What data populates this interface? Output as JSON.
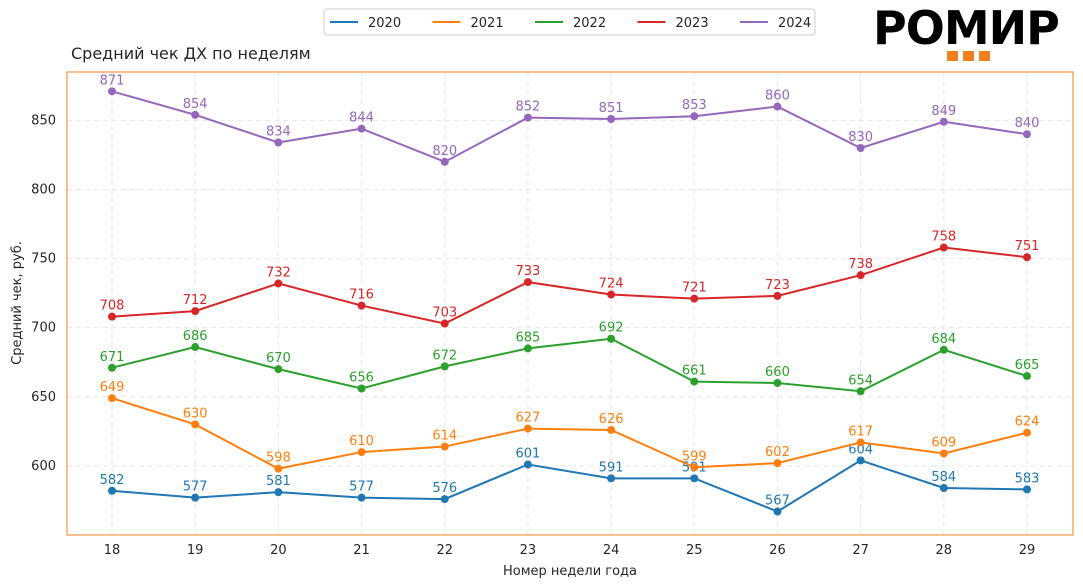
{
  "brand": {
    "logo_text": "РОМИР",
    "accent_color": "#f47f1f"
  },
  "chart_data": {
    "type": "line",
    "title": "Средний чек ДХ по неделям",
    "xlabel": "Номер недели года",
    "ylabel": "Средний чек, руб.",
    "x": [
      18,
      19,
      20,
      21,
      22,
      23,
      24,
      25,
      26,
      27,
      28,
      29
    ],
    "ylim": [
      550,
      885
    ],
    "yticks": [
      600,
      650,
      700,
      750,
      800,
      850
    ],
    "grid": true,
    "legend_position": "top-center",
    "series": [
      {
        "name": "2020",
        "color": "#1f77b4",
        "values": [
          582,
          577,
          581,
          577,
          576,
          601,
          591,
          591,
          567,
          604,
          584,
          583
        ]
      },
      {
        "name": "2021",
        "color": "#ff7f0e",
        "values": [
          649,
          630,
          598,
          610,
          614,
          627,
          626,
          599,
          602,
          617,
          609,
          624
        ]
      },
      {
        "name": "2022",
        "color": "#2ca02c",
        "values": [
          671,
          686,
          670,
          656,
          672,
          685,
          692,
          661,
          660,
          654,
          684,
          665
        ]
      },
      {
        "name": "2023",
        "color": "#d62728",
        "values": [
          708,
          712,
          732,
          716,
          703,
          733,
          724,
          721,
          723,
          738,
          758,
          751
        ]
      },
      {
        "name": "2024",
        "color": "#9467bd",
        "values": [
          871,
          854,
          834,
          844,
          820,
          852,
          851,
          853,
          860,
          830,
          849,
          840
        ]
      }
    ]
  }
}
